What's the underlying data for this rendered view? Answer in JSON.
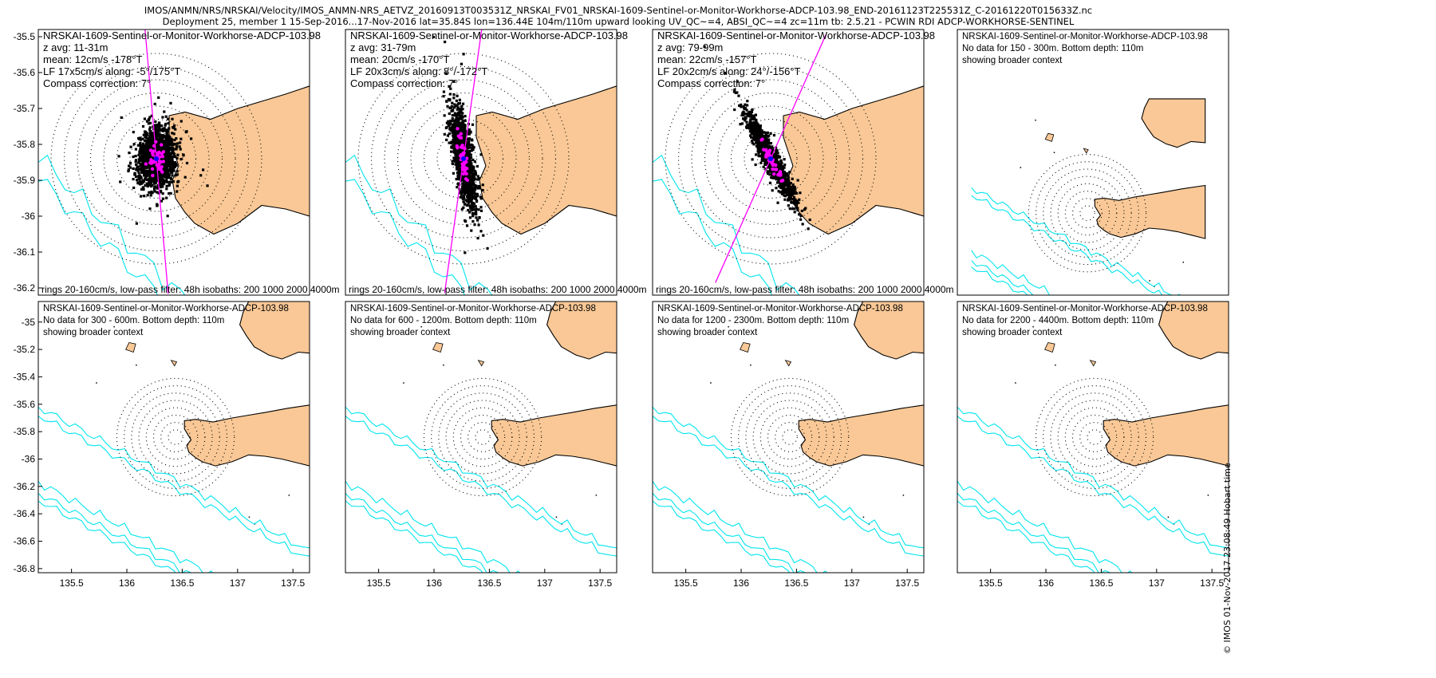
{
  "header": {
    "line1": "IMOS/ANMN/NRS/NRSKAI/Velocity/IMOS_ANMN-NRS_AETVZ_20160913T003531Z_NRSKAI_FV01_NRSKAI-1609-Sentinel-or-Monitor-Workhorse-ADCP-103.98_END-20161123T225531Z_C-20161220T015633Z.nc",
    "line2": "Deployment 25, member 1 15-Sep-2016...17-Nov-2016 lat=35.84S lon=136.44E 104m/110m upward looking UV_QC~=4, ABSI_QC~=4 zc=11m tb: 2.5.21 - PCWIN RDI ADCP-WORKHORSE-SENTINEL"
  },
  "credit": "© IMOS 01-Nov-2017 23:08:49 Hobart time",
  "colors": {
    "land": "#f9c896",
    "isobath": "#00e5ee",
    "axis_line": "#ff00ff",
    "points": "#000000",
    "lowpass": "#ff00ff",
    "mean": "#0000ff"
  },
  "chart_data": [
    {
      "type": "scatter",
      "panel": "z 11-31m",
      "xlim": [
        135.7,
        137.4
      ],
      "ylim": [
        -36.22,
        -35.48
      ],
      "yticks": [
        "-35.5",
        "-35.6",
        "-35.7",
        "-35.8",
        "-35.9",
        "-36",
        "-36.1",
        "-36.2"
      ],
      "ytick_values": [
        -35.5,
        -35.6,
        -35.7,
        -35.8,
        -35.9,
        -36,
        -36.1,
        -36.2
      ],
      "center": [
        136.44,
        -35.84
      ],
      "text": [
        "NRSKAI-1609-Sentinel-or-Monitor-Workhorse-ADCP-103.98",
        "z avg: 11-31m",
        "mean: 12cm/s -178°T",
        "LF 17x5cm/s along: -5°/175°T",
        "Compass correction: 7°"
      ],
      "footer": "rings 20-160cm/s, low-pass filter: 48h isobaths: 200 1000 2000 4000m",
      "ellipse": {
        "major": 0.09,
        "minor": 0.055,
        "angle_deg": -5,
        "n": 1600,
        "seed": 11
      },
      "axis_bearing_deg": -5
    },
    {
      "type": "scatter",
      "panel": "z 31-79m",
      "xlim": [
        135.7,
        137.4
      ],
      "ylim": [
        -36.22,
        -35.48
      ],
      "center": [
        136.44,
        -35.84
      ],
      "text": [
        "NRSKAI-1609-Sentinel-or-Monitor-Workhorse-ADCP-103.98",
        "z avg: 31-79m",
        "mean: 20cm/s -170°T",
        "LF 20x3cm/s along: 8°/-172°T",
        "Compass correction: 7°"
      ],
      "footer": "rings 20-160cm/s, low-pass filter: 48h isobaths: 200 1000 2000 4000m",
      "ellipse": {
        "major": 0.15,
        "minor": 0.028,
        "angle_deg": 10,
        "n": 1400,
        "seed": 23
      },
      "axis_bearing_deg": 8
    },
    {
      "type": "scatter",
      "panel": "z 79-99m",
      "xlim": [
        135.7,
        137.4
      ],
      "ylim": [
        -36.22,
        -35.48
      ],
      "center": [
        136.44,
        -35.84
      ],
      "text": [
        "NRSKAI-1609-Sentinel-or-Monitor-Workhorse-ADCP-103.98",
        "z avg: 79-99m",
        "mean: 22cm/s -157°T",
        "LF 20x2cm/s along: 24°/-156°T",
        "Compass correction: 7°"
      ],
      "footer": "rings 20-160cm/s, low-pass filter: 48h isobaths: 200 1000 2000 4000m",
      "ellipse": {
        "major": 0.15,
        "minor": 0.022,
        "angle_deg": 28,
        "n": 1300,
        "seed": 37
      },
      "axis_bearing_deg": 24
    },
    {
      "type": "map",
      "panel": "150 - 300m",
      "text": [
        "NRSKAI-1609-Sentinel-or-Monitor-Workhorse-ADCP-103.98",
        "No data for 150 - 300m. Bottom depth: 110m",
        "showing broader context"
      ]
    },
    {
      "type": "map",
      "panel": "300 - 600m",
      "yticks": [
        "-35",
        "-35.2",
        "-35.4",
        "-35.6",
        "-35.8",
        "-36",
        "-36.2",
        "-36.4",
        "-36.6",
        "-36.8"
      ],
      "ytick_values": [
        -35,
        -35.2,
        -35.4,
        -35.6,
        -35.8,
        -36,
        -36.2,
        -36.4,
        -36.6,
        -36.8
      ],
      "text": [
        "NRSKAI-1609-Sentinel-or-Monitor-Workhorse-ADCP-103.98",
        "No data for 300 - 600m. Bottom depth: 110m",
        "showing broader context"
      ]
    },
    {
      "type": "map",
      "panel": "600 - 1200m",
      "text": [
        "NRSKAI-1609-Sentinel-or-Monitor-Workhorse-ADCP-103.98",
        "No data for 600 - 1200m. Bottom depth: 110m",
        "showing broader context"
      ]
    },
    {
      "type": "map",
      "panel": "1200 - 2300m",
      "text": [
        "NRSKAI-1609-Sentinel-or-Monitor-Workhorse-ADCP-103.98",
        "No data for 1200 - 2300m. Bottom depth: 110m",
        "showing broader context"
      ]
    },
    {
      "type": "map",
      "panel": "2200 - 4400m",
      "text": [
        "NRSKAI-1609-Sentinel-or-Monitor-Workhorse-ADCP-103.98",
        "No data for 2200 - 4400m. Bottom depth: 110m",
        "showing broader context"
      ]
    }
  ],
  "map_axes": {
    "xlim": [
      135.2,
      137.65
    ],
    "ylim": [
      -36.83,
      -34.85
    ],
    "xticks": [
      "135.5",
      "136",
      "136.5",
      "137",
      "137.5"
    ],
    "xtick_values": [
      135.5,
      136,
      136.5,
      137,
      137.5
    ]
  }
}
